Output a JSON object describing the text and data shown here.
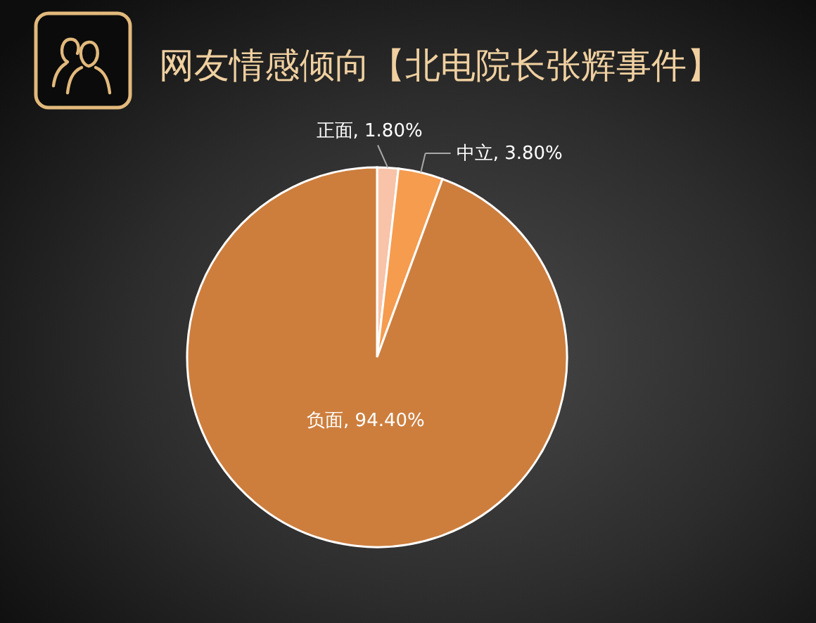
{
  "chart_data": {
    "type": "pie",
    "title": "网友情感倾向【北电院长张辉事件】",
    "categories": [
      "正面",
      "中立",
      "负面"
    ],
    "values": [
      1.8,
      3.8,
      94.4
    ],
    "colors": [
      "#f8c3a8",
      "#f59c4f",
      "#cd7e3d"
    ],
    "value_labels": [
      "1.80%",
      "3.80%",
      "94.40%"
    ]
  }
}
